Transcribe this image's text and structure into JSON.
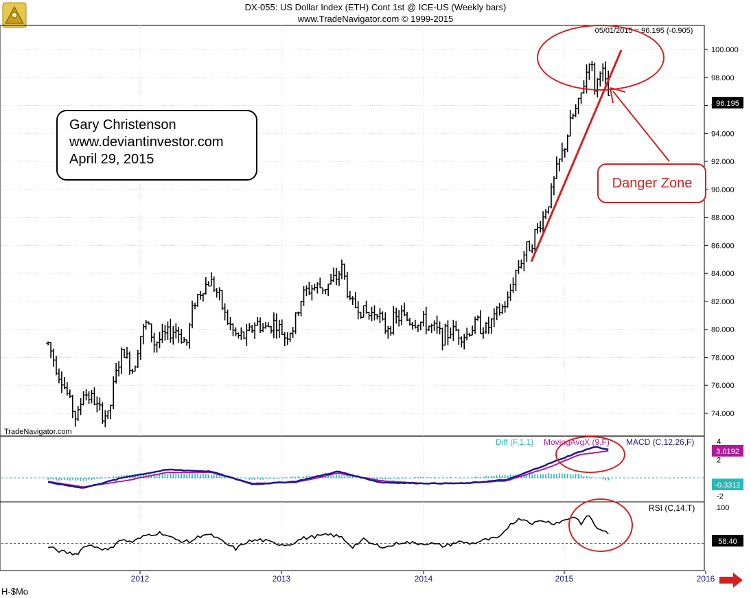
{
  "header": {
    "title": "DX-055:  US Dollar Index (ETH) Cont 1st @ ICE-US  (Weekly bars)",
    "subtitle": "www.TradeNavigator.com © 1999-2015",
    "last_quote": "05/01/2015 = 96.195 (-0.905)"
  },
  "watermark": "TradeNavigator.com",
  "footer_left": "H-$Mo",
  "annotation_box": {
    "line1": "Gary Christenson",
    "line2": "www.deviantinvestor.com",
    "line3": "April 29, 2015"
  },
  "danger_label": "Danger Zone",
  "colors": {
    "price_bars": "#000000",
    "annotation_red": "#d42020",
    "macd_line": "#1a1a8c",
    "signal_line": "#b0199b",
    "diff_bars": "#29b8b8",
    "rsi_line": "#000000",
    "rsi_ref": "#9b30b0"
  },
  "chart_data": [
    {
      "type": "ohlc",
      "title": "DX-055:  US Dollar Index (ETH) Cont 1st @ ICE-US  (Weekly bars)",
      "x_labels": [
        "2012",
        "2013",
        "2014",
        "2015",
        "2016"
      ],
      "ylim": [
        72.5,
        101.5
      ],
      "y_ticks": [
        "74.000",
        "76.000",
        "78.000",
        "80.000",
        "82.000",
        "84.000",
        "86.000",
        "88.000",
        "90.000",
        "92.000",
        "94.000",
        "96.000",
        "98.000",
        "100.000"
      ],
      "last_value_label": "96.195",
      "series": [
        {
          "name": "close",
          "points": [
            [
              2011.35,
              79.0
            ],
            [
              2011.42,
              77.0
            ],
            [
              2011.5,
              75.0
            ],
            [
              2011.55,
              73.5
            ],
            [
              2011.6,
              75.5
            ],
            [
              2011.67,
              75.0
            ],
            [
              2011.72,
              74.0
            ],
            [
              2011.78,
              73.8
            ],
            [
              2011.82,
              76.5
            ],
            [
              2011.88,
              78.5
            ],
            [
              2011.95,
              77.0
            ],
            [
              2012.0,
              79.5
            ],
            [
              2012.05,
              80.5
            ],
            [
              2012.1,
              79.0
            ],
            [
              2012.17,
              79.5
            ],
            [
              2012.25,
              80.0
            ],
            [
              2012.33,
              79.0
            ],
            [
              2012.38,
              82.0
            ],
            [
              2012.45,
              83.0
            ],
            [
              2012.5,
              83.5
            ],
            [
              2012.55,
              82.5
            ],
            [
              2012.62,
              80.5
            ],
            [
              2012.68,
              79.5
            ],
            [
              2012.75,
              79.5
            ],
            [
              2012.82,
              80.5
            ],
            [
              2012.88,
              80.0
            ],
            [
              2012.95,
              80.5
            ],
            [
              2013.02,
              79.5
            ],
            [
              2013.08,
              80.0
            ],
            [
              2013.15,
              82.5
            ],
            [
              2013.22,
              83.0
            ],
            [
              2013.3,
              83.0
            ],
            [
              2013.38,
              83.5
            ],
            [
              2013.43,
              84.5
            ],
            [
              2013.48,
              82.0
            ],
            [
              2013.55,
              81.5
            ],
            [
              2013.62,
              81.0
            ],
            [
              2013.68,
              81.5
            ],
            [
              2013.72,
              80.0
            ],
            [
              2013.78,
              80.5
            ],
            [
              2013.85,
              81.0
            ],
            [
              2013.92,
              80.5
            ],
            [
              2014.0,
              80.5
            ],
            [
              2014.08,
              80.0
            ],
            [
              2014.15,
              79.5
            ],
            [
              2014.22,
              80.0
            ],
            [
              2014.3,
              79.5
            ],
            [
              2014.38,
              80.5
            ],
            [
              2014.45,
              80.0
            ],
            [
              2014.52,
              81.0
            ],
            [
              2014.6,
              82.0
            ],
            [
              2014.65,
              84.0
            ],
            [
              2014.72,
              85.5
            ],
            [
              2014.78,
              86.5
            ],
            [
              2014.85,
              88.0
            ],
            [
              2014.9,
              89.5
            ],
            [
              2014.95,
              91.5
            ],
            [
              2015.0,
              93.0
            ],
            [
              2015.05,
              95.0
            ],
            [
              2015.1,
              96.0
            ],
            [
              2015.15,
              98.0
            ],
            [
              2015.18,
              99.5
            ],
            [
              2015.22,
              97.0
            ],
            [
              2015.26,
              99.0
            ],
            [
              2015.3,
              97.0
            ],
            [
              2015.33,
              96.2
            ]
          ]
        }
      ],
      "annotations": [
        "Gary Christenson",
        "www.deviantinvestor.com",
        "April 29, 2015",
        "Danger Zone"
      ]
    },
    {
      "type": "line",
      "title": "MACD (C,12,26,F)",
      "ylim": [
        -2.4,
        4.2
      ],
      "y_ticks": [
        "-2",
        "2",
        "4"
      ],
      "value_labels": [
        "3.0192",
        "-0.3312"
      ],
      "series": [
        {
          "name": "Diff (F,1,1)",
          "type": "bar",
          "points": [
            [
              2011.35,
              -0.2
            ],
            [
              2011.6,
              -0.3
            ],
            [
              2011.9,
              0.3
            ],
            [
              2012.2,
              0.5
            ],
            [
              2012.5,
              0.4
            ],
            [
              2012.8,
              -0.2
            ],
            [
              2013.1,
              0.1
            ],
            [
              2013.4,
              0.3
            ],
            [
              2013.7,
              -0.2
            ],
            [
              2014.0,
              0.1
            ],
            [
              2014.3,
              0.0
            ],
            [
              2014.6,
              0.3
            ],
            [
              2014.9,
              0.5
            ],
            [
              2015.1,
              0.4
            ],
            [
              2015.33,
              -0.33
            ]
          ]
        },
        {
          "name": "MovingAvgX (9,F)",
          "points": [
            [
              2011.35,
              -0.4
            ],
            [
              2011.6,
              -1.0
            ],
            [
              2011.9,
              -0.3
            ],
            [
              2012.2,
              0.6
            ],
            [
              2012.5,
              0.6
            ],
            [
              2012.8,
              -0.6
            ],
            [
              2013.1,
              -0.5
            ],
            [
              2013.4,
              0.5
            ],
            [
              2013.7,
              -0.3
            ],
            [
              2014.0,
              -0.6
            ],
            [
              2014.3,
              -0.6
            ],
            [
              2014.6,
              -0.3
            ],
            [
              2014.9,
              1.2
            ],
            [
              2015.1,
              2.5
            ],
            [
              2015.33,
              3.0
            ]
          ]
        },
        {
          "name": "MACD (C,12,26,F)",
          "points": [
            [
              2011.35,
              -0.5
            ],
            [
              2011.6,
              -1.1
            ],
            [
              2011.9,
              0.1
            ],
            [
              2012.2,
              0.9
            ],
            [
              2012.5,
              0.7
            ],
            [
              2012.8,
              -0.7
            ],
            [
              2013.1,
              -0.4
            ],
            [
              2013.4,
              0.7
            ],
            [
              2013.7,
              -0.5
            ],
            [
              2014.0,
              -0.6
            ],
            [
              2014.3,
              -0.6
            ],
            [
              2014.6,
              -0.2
            ],
            [
              2014.9,
              1.6
            ],
            [
              2015.1,
              2.8
            ],
            [
              2015.22,
              3.4
            ],
            [
              2015.33,
              3.02
            ]
          ]
        }
      ]
    },
    {
      "type": "line",
      "title": "RSI (C,14,T)",
      "ylim": [
        15,
        105
      ],
      "y_ticks": [
        "50",
        "100"
      ],
      "value_labels": [
        "58.40"
      ],
      "series": [
        {
          "name": "RSI (C,14,T)",
          "points": [
            [
              2011.35,
              45
            ],
            [
              2011.45,
              38
            ],
            [
              2011.55,
              35
            ],
            [
              2011.62,
              48
            ],
            [
              2011.7,
              45
            ],
            [
              2011.78,
              40
            ],
            [
              2011.85,
              55
            ],
            [
              2011.95,
              52
            ],
            [
              2012.05,
              62
            ],
            [
              2012.15,
              65
            ],
            [
              2012.25,
              55
            ],
            [
              2012.35,
              52
            ],
            [
              2012.45,
              63
            ],
            [
              2012.52,
              60
            ],
            [
              2012.6,
              50
            ],
            [
              2012.68,
              42
            ],
            [
              2012.75,
              52
            ],
            [
              2012.85,
              55
            ],
            [
              2012.95,
              50
            ],
            [
              2013.05,
              48
            ],
            [
              2013.15,
              57
            ],
            [
              2013.25,
              60
            ],
            [
              2013.35,
              62
            ],
            [
              2013.43,
              58
            ],
            [
              2013.5,
              45
            ],
            [
              2013.58,
              55
            ],
            [
              2013.65,
              48
            ],
            [
              2013.75,
              45
            ],
            [
              2013.85,
              52
            ],
            [
              2013.95,
              50
            ],
            [
              2014.05,
              50
            ],
            [
              2014.15,
              46
            ],
            [
              2014.25,
              52
            ],
            [
              2014.35,
              50
            ],
            [
              2014.45,
              55
            ],
            [
              2014.55,
              58
            ],
            [
              2014.62,
              78
            ],
            [
              2014.7,
              85
            ],
            [
              2014.78,
              78
            ],
            [
              2014.85,
              82
            ],
            [
              2014.92,
              78
            ],
            [
              2015.0,
              82
            ],
            [
              2015.07,
              88
            ],
            [
              2015.12,
              78
            ],
            [
              2015.18,
              90
            ],
            [
              2015.22,
              72
            ],
            [
              2015.28,
              68
            ],
            [
              2015.33,
              58.4
            ]
          ]
        }
      ],
      "reference_line": 50
    }
  ]
}
